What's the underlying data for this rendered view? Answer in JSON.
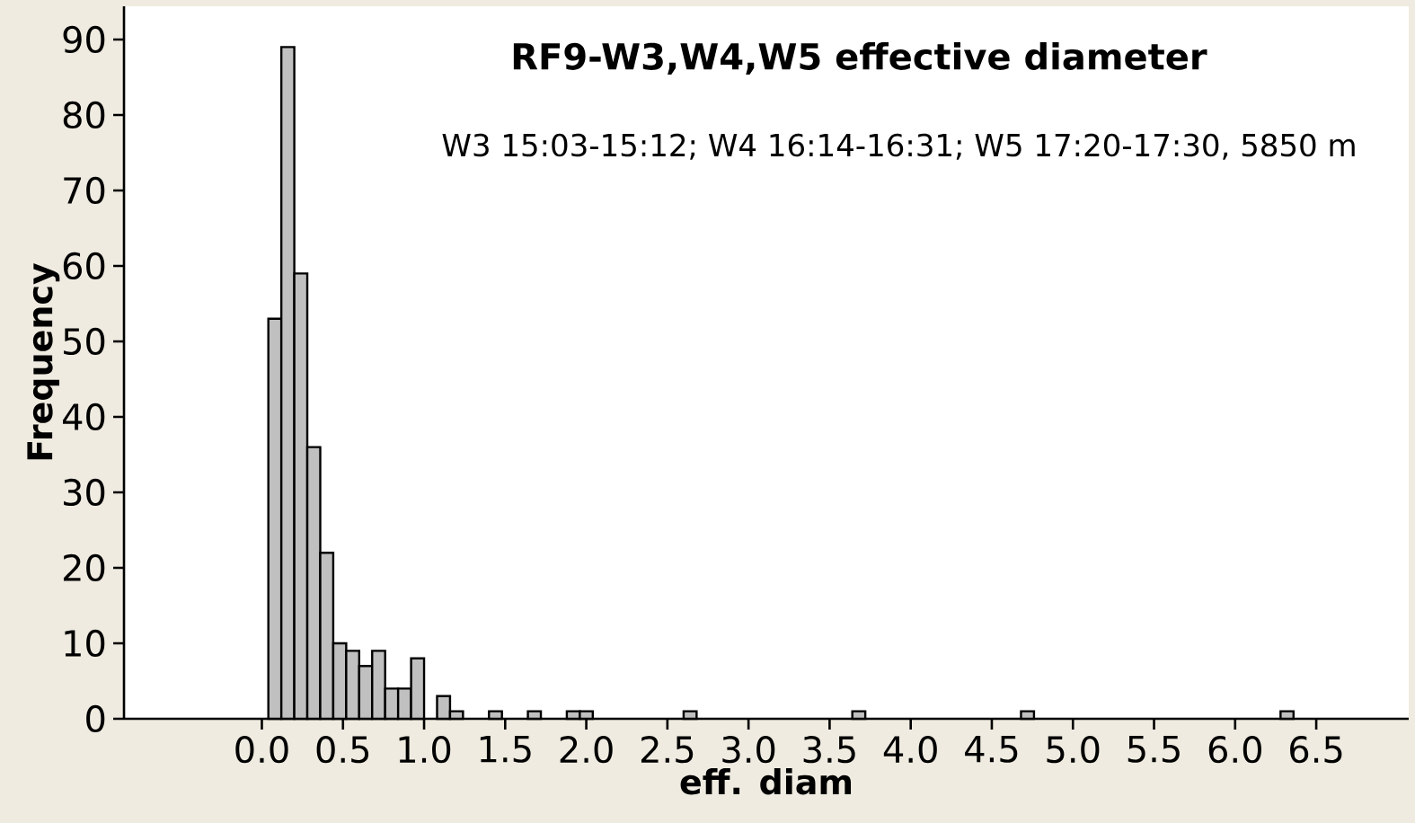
{
  "chart_data": {
    "type": "histogram",
    "title": "**RF9-W3,W4,W5 effective diameter**",
    "subtitle": "W3 15:03-15:12; W4 16:14-16:31; W5 17:20-17:30, 5850 m",
    "xlabel": "**eff. diam**",
    "ylabel": "**Frequency**",
    "color": "#c0c0c0",
    "bins": [
      0.04,
      0.12,
      0.2,
      0.28,
      0.36,
      0.44,
      0.52,
      0.6,
      0.68,
      0.76,
      0.84,
      0.92,
      1.0,
      1.08,
      1.16,
      1.24,
      1.32,
      1.4,
      1.48,
      1.56,
      1.64,
      1.72,
      1.8,
      1.88,
      1.96,
      2.04,
      2.12,
      2.2,
      2.28,
      2.36,
      2.44,
      2.52,
      2.6,
      2.68,
      2.76,
      2.84,
      2.92,
      3.0,
      3.08,
      3.16,
      3.24,
      3.32,
      3.4,
      3.48,
      3.56,
      3.64,
      3.72,
      3.8,
      3.88,
      3.96,
      4.04,
      4.12,
      4.2,
      4.28,
      4.36,
      4.44,
      4.52,
      4.6,
      4.68,
      4.76,
      4.84,
      4.92,
      5.0,
      5.08,
      5.16,
      5.24,
      5.32,
      5.4,
      5.48,
      5.56,
      5.64,
      5.72,
      5.8,
      5.88,
      5.96,
      6.04,
      6.12,
      6.2,
      6.28,
      6.36
    ],
    "values": [
      53,
      89,
      59,
      36,
      22,
      10,
      9,
      7,
      9,
      4,
      4,
      8,
      0,
      3,
      1,
      0,
      0,
      1,
      0,
      0,
      1,
      0,
      0,
      1,
      1,
      0,
      0,
      0,
      0,
      0,
      0,
      0,
      1,
      0,
      0,
      0,
      0,
      0,
      0,
      0,
      0,
      0,
      0,
      0,
      0,
      1,
      0,
      0,
      0,
      0,
      0,
      0,
      0,
      0,
      0,
      0,
      0,
      0,
      1,
      0,
      0,
      0,
      0,
      0,
      0,
      0,
      0,
      0,
      0,
      0,
      0,
      0,
      0,
      0,
      0,
      0,
      0,
      0,
      1
    ],
    "xlim": [
      -0.85,
      7.07
    ],
    "ylim": [
      0,
      94.4
    ],
    "xticks": [
      {
        "value": 0,
        "label": "0.0"
      },
      {
        "value": 0.5,
        "label": "0.5"
      },
      {
        "value": 1,
        "label": "1.0"
      },
      {
        "value": 1.5,
        "label": "1.5"
      },
      {
        "value": 2,
        "label": "2.0"
      },
      {
        "value": 2.5,
        "label": "2.5"
      },
      {
        "value": 3,
        "label": "3.0"
      },
      {
        "value": 3.5,
        "label": "3.5"
      },
      {
        "value": 4,
        "label": "4.0"
      },
      {
        "value": 4.5,
        "label": "4.5"
      },
      {
        "value": 5,
        "label": "5.0"
      },
      {
        "value": 5.5,
        "label": "5.5"
      },
      {
        "value": 6,
        "label": "6.0"
      },
      {
        "value": 6.5,
        "label": "6.5"
      }
    ],
    "yticks": [
      0,
      10,
      20,
      30,
      40,
      50,
      60,
      70,
      80,
      90
    ]
  }
}
